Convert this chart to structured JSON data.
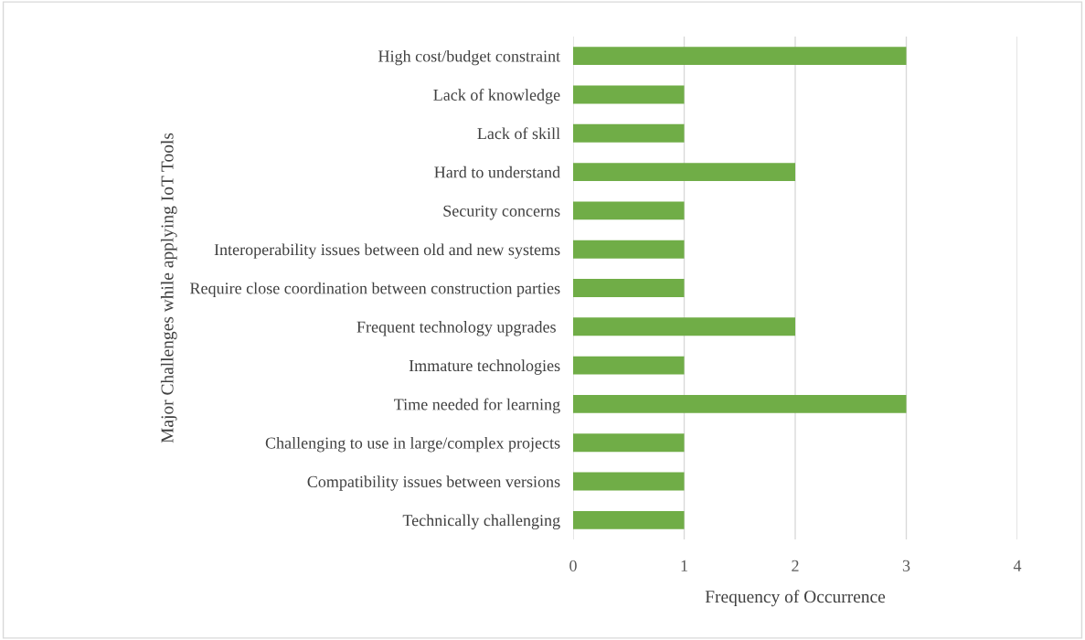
{
  "chart_data": {
    "type": "bar",
    "orientation": "horizontal",
    "xlabel": "Frequency of Occurrence",
    "ylabel": "Major Challenges while applying IoT Tools",
    "categories": [
      "High cost/budget constraint",
      "Lack of knowledge",
      "Lack of skill",
      "Hard to understand",
      "Security concerns",
      "Interoperability issues between old and new systems",
      "Require close coordination between construction parties",
      "Frequent technology upgrades ",
      "Immature technologies",
      "Time needed for learning",
      "Challenging to use in large/complex projects",
      "Compatibility issues between versions",
      "Technically challenging"
    ],
    "values": [
      3,
      1,
      1,
      2,
      1,
      1,
      1,
      2,
      1,
      3,
      1,
      1,
      1
    ],
    "color": "#70ad47",
    "xlim": [
      0,
      4
    ],
    "xticks": [
      0,
      1,
      2,
      3,
      4
    ],
    "grid": "x",
    "legend": false
  }
}
